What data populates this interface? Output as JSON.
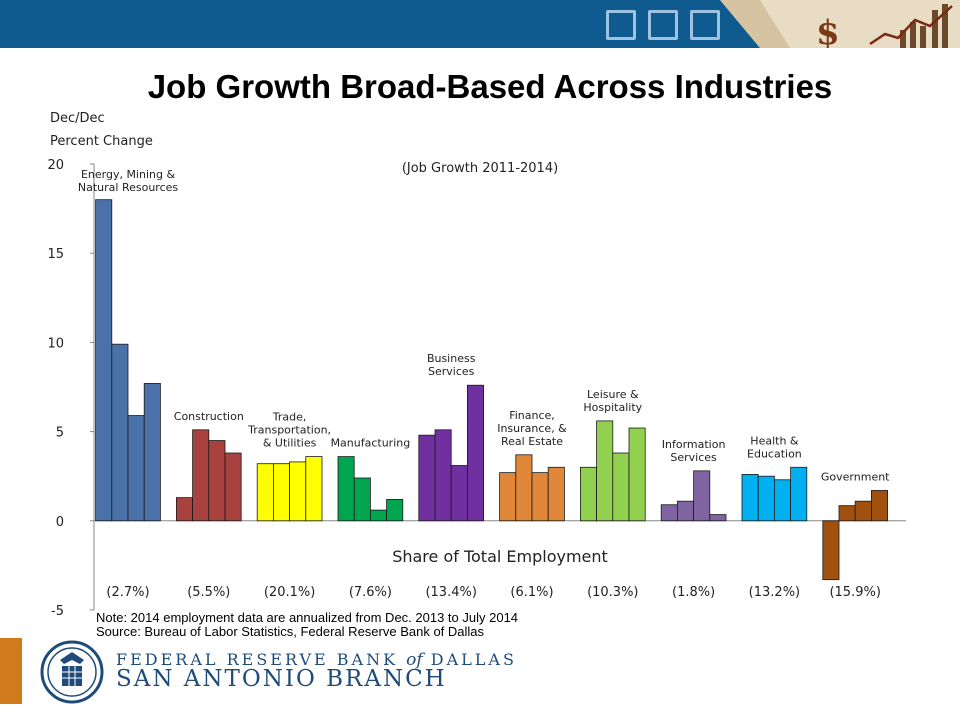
{
  "slide": {
    "title": "Job Growth Broad-Based Across Industries"
  },
  "colors": {
    "header": "#0f5a8f",
    "accent": "#d07a1c",
    "bank_text": "#1f4b7a"
  },
  "chart_data": {
    "type": "bar",
    "ylabel_line1": "Dec/Dec",
    "ylabel_line2": "Percent Change",
    "subtitle": "(Job Growth 2011-2014)",
    "xaxis_title": "Share of Total Employment",
    "ylim": [
      -5,
      20
    ],
    "yticks": [
      -5,
      0,
      5,
      10,
      15,
      20
    ],
    "grid": false,
    "groups": [
      {
        "label_lines": [
          "Energy, Mining &",
          "Natural Resources"
        ],
        "share": "(2.7%)",
        "color": "#4a72a8",
        "values": [
          18.0,
          9.9,
          5.9,
          7.7
        ]
      },
      {
        "label_lines": [
          "Construction"
        ],
        "share": "(5.5%)",
        "color": "#a8423f",
        "values": [
          1.3,
          5.1,
          4.5,
          3.8
        ]
      },
      {
        "label_lines": [
          "Trade,",
          "Transportation,",
          "& Utilities"
        ],
        "share": "(20.1%)",
        "color": "#ffff00",
        "values": [
          3.2,
          3.2,
          3.3,
          3.6
        ]
      },
      {
        "label_lines": [
          "Manufacturing"
        ],
        "share": "(7.6%)",
        "color": "#00a550",
        "values": [
          3.6,
          2.4,
          0.6,
          1.2
        ]
      },
      {
        "label_lines": [
          "Business",
          "Services"
        ],
        "share": "(13.4%)",
        "color": "#7030a0",
        "values": [
          4.8,
          5.1,
          3.1,
          7.6
        ]
      },
      {
        "label_lines": [
          "Finance,",
          "Insurance, &",
          "Real Estate"
        ],
        "share": "(6.1%)",
        "color": "#e0873a",
        "values": [
          2.7,
          3.7,
          2.7,
          3.0
        ]
      },
      {
        "label_lines": [
          "Leisure &",
          "Hospitality"
        ],
        "share": "(10.3%)",
        "color": "#92d050",
        "values": [
          3.0,
          5.6,
          3.8,
          5.2
        ]
      },
      {
        "label_lines": [
          "Information",
          "Services"
        ],
        "share": "(1.8%)",
        "color": "#8064a2",
        "values": [
          0.9,
          1.1,
          2.8,
          0.35
        ]
      },
      {
        "label_lines": [
          "Health &",
          "Education"
        ],
        "share": "(13.2%)",
        "color": "#00b0f0",
        "values": [
          2.6,
          2.5,
          2.3,
          3.0
        ]
      },
      {
        "label_lines": [
          "Government"
        ],
        "share": "(15.9%)",
        "color": "#a0500f",
        "values": [
          -3.3,
          0.85,
          1.1,
          1.7
        ]
      }
    ]
  },
  "notes": {
    "line1": "Note: 2014 employment data are annualized from Dec. 2013 to July 2014",
    "line2": "Source: Bureau of Labor Statistics, Federal Reserve Bank of Dallas"
  },
  "footer": {
    "bank_part1": "FEDERAL RESERVE BANK",
    "bank_of": "of",
    "bank_part2": "DALLAS",
    "branch": "SAN ANTONIO BRANCH"
  }
}
